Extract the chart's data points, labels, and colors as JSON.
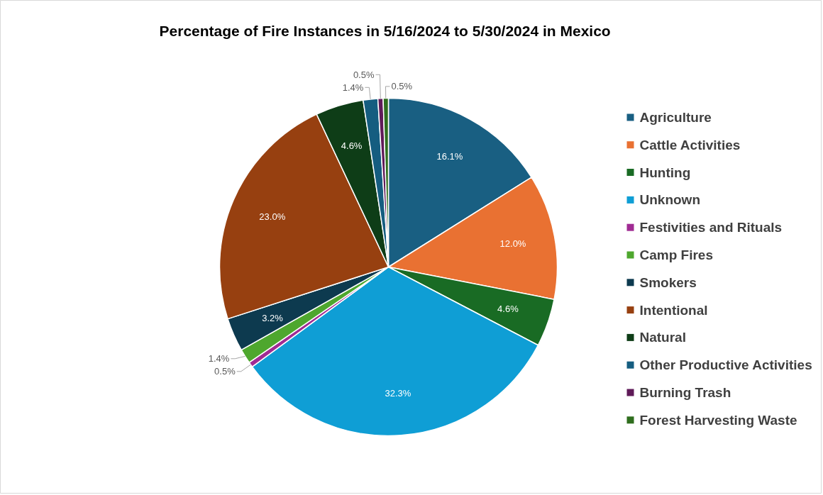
{
  "chart_data": {
    "type": "pie",
    "title": "Percentage of Fire Instances  in 5/16/2024 to 5/30/2024 in Mexico",
    "categories": [
      "Agriculture",
      "Cattle Activities",
      "Hunting",
      "Unknown",
      "Festivities and Rituals",
      "Camp Fires",
      "Smokers",
      "Intentional",
      "Natural",
      "Other Productive Activities",
      "Burning Trash",
      "Forest Harvesting Waste"
    ],
    "values": [
      16.1,
      12.0,
      4.6,
      32.3,
      0.5,
      1.4,
      3.2,
      23.0,
      4.6,
      1.4,
      0.5,
      0.5
    ],
    "value_labels": [
      "16.1%",
      "12.0%",
      "4.6%",
      "32.3%",
      "0.5%",
      "1.4%",
      "3.2%",
      "23.0%",
      "4.6%",
      "1.4%",
      "0.5%",
      "0.5%"
    ],
    "colors": [
      "#195f82",
      "#e97132",
      "#196b24",
      "#0f9ed5",
      "#a02b93",
      "#4ea72e",
      "#0d3a4f",
      "#974010",
      "#0e3d17",
      "#155d80",
      "#5f1a58",
      "#2f6e1e"
    ],
    "legend": "right"
  }
}
